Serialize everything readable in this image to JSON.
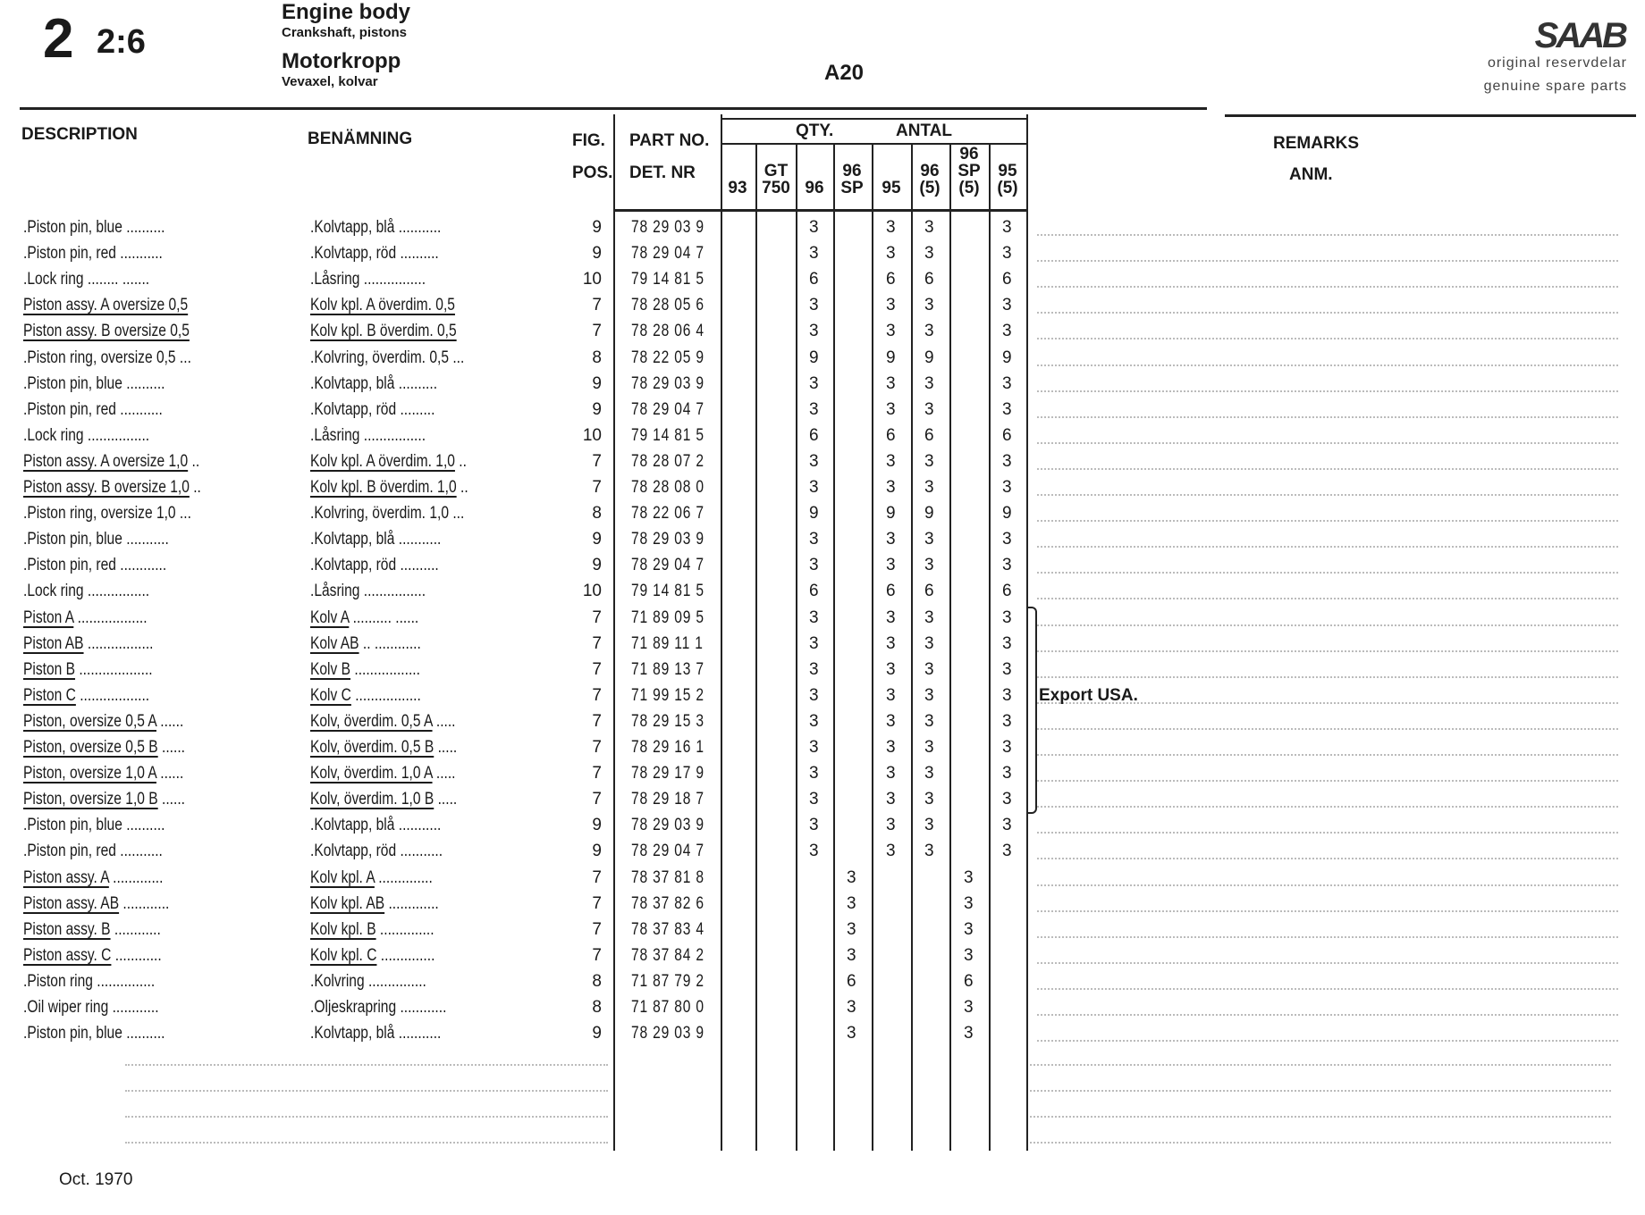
{
  "header": {
    "section_number": "2",
    "section_sub": "2:6",
    "title_en": "Engine body",
    "subtitle_en": "Crankshaft, pistons",
    "title_sv": "Motorkropp",
    "subtitle_sv": "Vevaxel, kolvar",
    "model": "A20",
    "logo": "SAAB",
    "tagline_sv": "original reservdelar",
    "tagline_en": "genuine spare parts"
  },
  "columns": {
    "description": "DESCRIPTION",
    "benamning": "BENÄMNING",
    "fig": "FIG.",
    "pos": "POS.",
    "part_no": "PART NO.",
    "det_nr": "DET. NR",
    "qty": "QTY.",
    "antal": "ANTAL",
    "remarks": "REMARKS",
    "anm": "ANM.",
    "qty_cols": [
      [
        "93"
      ],
      [
        "GT",
        "750"
      ],
      [
        "96"
      ],
      [
        "96",
        "SP"
      ],
      [
        "95"
      ],
      [
        "96",
        "(5)"
      ],
      [
        "96",
        "SP",
        "(5)"
      ],
      [
        "95",
        "(5)"
      ]
    ]
  },
  "rows": [
    {
      "desc": ".Piston pin, blue",
      "dl": " ..........",
      "ben": ".Kolvtapp, blå",
      "bl": " ...........",
      "fig": "9",
      "part": "78 29 03 9",
      "qty": [
        "",
        "",
        "3",
        "",
        "3",
        "3",
        "",
        "3"
      ],
      "u": false
    },
    {
      "desc": ".Piston pin, red",
      "dl": " ...........",
      "ben": ".Kolvtapp, röd",
      "bl": " ..........",
      "fig": "9",
      "part": "78 29 04 7",
      "qty": [
        "",
        "",
        "3",
        "",
        "3",
        "3",
        "",
        "3"
      ],
      "u": false
    },
    {
      "desc": ".Lock ring",
      "dl": " ........ .......",
      "ben": ".Låsring",
      "bl": " ................",
      "fig": "10",
      "part": "79 14 81 5",
      "qty": [
        "",
        "",
        "6",
        "",
        "6",
        "6",
        "",
        "6"
      ],
      "u": false
    },
    {
      "desc": "Piston assy. A oversize 0,5",
      "dl": "",
      "ben": "Kolv kpl. A överdim. 0,5",
      "bl": "",
      "fig": "7",
      "part": "78 28 05 6",
      "qty": [
        "",
        "",
        "3",
        "",
        "3",
        "3",
        "",
        "3"
      ],
      "u": true
    },
    {
      "desc": "Piston assy. B oversize 0,5",
      "dl": "",
      "ben": "Kolv kpl. B överdim. 0,5",
      "bl": "",
      "fig": "7",
      "part": "78 28 06 4",
      "qty": [
        "",
        "",
        "3",
        "",
        "3",
        "3",
        "",
        "3"
      ],
      "u": true
    },
    {
      "desc": ".Piston ring, oversize 0,5",
      "dl": " ...",
      "ben": ".Kolvring, överdim. 0,5",
      "bl": " ...",
      "fig": "8",
      "part": "78 22 05 9",
      "qty": [
        "",
        "",
        "9",
        "",
        "9",
        "9",
        "",
        "9"
      ],
      "u": false
    },
    {
      "desc": ".Piston pin, blue",
      "dl": " ..........",
      "ben": ".Kolvtapp, blå",
      "bl": " ..........",
      "fig": "9",
      "part": "78 29 03 9",
      "qty": [
        "",
        "",
        "3",
        "",
        "3",
        "3",
        "",
        "3"
      ],
      "u": false
    },
    {
      "desc": ".Piston pin, red",
      "dl": " ...........",
      "ben": ".Kolvtapp, röd",
      "bl": " .........",
      "fig": "9",
      "part": "78 29 04 7",
      "qty": [
        "",
        "",
        "3",
        "",
        "3",
        "3",
        "",
        "3"
      ],
      "u": false
    },
    {
      "desc": ".Lock ring",
      "dl": " ................",
      "ben": ".Låsring",
      "bl": " ................",
      "fig": "10",
      "part": "79 14 81 5",
      "qty": [
        "",
        "",
        "6",
        "",
        "6",
        "6",
        "",
        "6"
      ],
      "u": false
    },
    {
      "desc": "Piston assy. A oversize 1,0",
      "dl": " ..",
      "ben": "Kolv kpl. A överdim. 1,0",
      "bl": " ..",
      "fig": "7",
      "part": "78 28 07 2",
      "qty": [
        "",
        "",
        "3",
        "",
        "3",
        "3",
        "",
        "3"
      ],
      "u": true
    },
    {
      "desc": "Piston assy. B oversize 1,0",
      "dl": " ..",
      "ben": "Kolv kpl. B överdim. 1,0",
      "bl": " ..",
      "fig": "7",
      "part": "78 28 08 0",
      "qty": [
        "",
        "",
        "3",
        "",
        "3",
        "3",
        "",
        "3"
      ],
      "u": true
    },
    {
      "desc": ".Piston ring, oversize 1,0",
      "dl": " ...",
      "ben": ".Kolvring, överdim. 1,0",
      "bl": " ...",
      "fig": "8",
      "part": "78 22 06 7",
      "qty": [
        "",
        "",
        "9",
        "",
        "9",
        "9",
        "",
        "9"
      ],
      "u": false
    },
    {
      "desc": ".Piston pin, blue",
      "dl": " ...........",
      "ben": ".Kolvtapp, blå",
      "bl": " ...........",
      "fig": "9",
      "part": "78 29 03 9",
      "qty": [
        "",
        "",
        "3",
        "",
        "3",
        "3",
        "",
        "3"
      ],
      "u": false
    },
    {
      "desc": ".Piston pin, red",
      "dl": " ............",
      "ben": ".Kolvtapp, röd",
      "bl": " ..........",
      "fig": "9",
      "part": "78 29 04 7",
      "qty": [
        "",
        "",
        "3",
        "",
        "3",
        "3",
        "",
        "3"
      ],
      "u": false
    },
    {
      "desc": ".Lock ring",
      "dl": " ................",
      "ben": ".Låsring",
      "bl": " ................",
      "fig": "10",
      "part": "79 14 81 5",
      "qty": [
        "",
        "",
        "6",
        "",
        "6",
        "6",
        "",
        "6"
      ],
      "u": false
    },
    {
      "desc": "Piston A",
      "dl": " ..................",
      "ben": "Kolv A",
      "bl": " .......... ......",
      "fig": "7",
      "part": "71 89 09 5",
      "qty": [
        "",
        "",
        "3",
        "",
        "3",
        "3",
        "",
        "3"
      ],
      "u": true
    },
    {
      "desc": "Piston AB",
      "dl": " .................",
      "ben": "Kolv AB",
      "bl": " .. ............",
      "fig": "7",
      "part": "71 89 11 1",
      "qty": [
        "",
        "",
        "3",
        "",
        "3",
        "3",
        "",
        "3"
      ],
      "u": true
    },
    {
      "desc": "Piston B",
      "dl": " ...................",
      "ben": "Kolv B",
      "bl": " .................",
      "fig": "7",
      "part": "71 89 13 7",
      "qty": [
        "",
        "",
        "3",
        "",
        "3",
        "3",
        "",
        "3"
      ],
      "u": true
    },
    {
      "desc": "Piston C",
      "dl": " ..................",
      "ben": "Kolv C",
      "bl": " .................",
      "fig": "7",
      "part": "71 99 15 2",
      "qty": [
        "",
        "",
        "3",
        "",
        "3",
        "3",
        "",
        "3"
      ],
      "u": true
    },
    {
      "desc": "Piston, oversize 0,5 A",
      "dl": " ......",
      "ben": "Kolv, överdim. 0,5 A",
      "bl": " .....",
      "fig": "7",
      "part": "78 29 15 3",
      "qty": [
        "",
        "",
        "3",
        "",
        "3",
        "3",
        "",
        "3"
      ],
      "u": true
    },
    {
      "desc": "Piston, oversize 0,5 B",
      "dl": " ......",
      "ben": "Kolv, överdim. 0,5 B",
      "bl": " .....",
      "fig": "7",
      "part": "78 29 16 1",
      "qty": [
        "",
        "",
        "3",
        "",
        "3",
        "3",
        "",
        "3"
      ],
      "u": true
    },
    {
      "desc": "Piston, oversize 1,0 A",
      "dl": " ......",
      "ben": "Kolv, överdim. 1,0 A",
      "bl": " .....",
      "fig": "7",
      "part": "78 29 17 9",
      "qty": [
        "",
        "",
        "3",
        "",
        "3",
        "3",
        "",
        "3"
      ],
      "u": true
    },
    {
      "desc": "Piston, oversize 1,0 B",
      "dl": " ......",
      "ben": "Kolv, överdim. 1,0 B",
      "bl": " .....",
      "fig": "7",
      "part": "78 29 18 7",
      "qty": [
        "",
        "",
        "3",
        "",
        "3",
        "3",
        "",
        "3"
      ],
      "u": true
    },
    {
      "desc": ".Piston pin, blue",
      "dl": " ..........",
      "ben": ".Kolvtapp, blå",
      "bl": " ...........",
      "fig": "9",
      "part": "78 29 03 9",
      "qty": [
        "",
        "",
        "3",
        "",
        "3",
        "3",
        "",
        "3"
      ],
      "u": false
    },
    {
      "desc": ".Piston pin, red",
      "dl": " ...........",
      "ben": ".Kolvtapp, röd",
      "bl": " ...........",
      "fig": "9",
      "part": "78 29 04 7",
      "qty": [
        "",
        "",
        "3",
        "",
        "3",
        "3",
        "",
        "3"
      ],
      "u": false
    },
    {
      "desc": "Piston assy. A",
      "dl": " .............",
      "ben": "Kolv kpl. A",
      "bl": " ..............",
      "fig": "7",
      "part": "78 37 81 8",
      "qty": [
        "",
        "",
        "",
        "3",
        "",
        "",
        "3",
        ""
      ],
      "u": true
    },
    {
      "desc": "Piston assy. AB",
      "dl": " ............",
      "ben": "Kolv kpl. AB",
      "bl": " .............",
      "fig": "7",
      "part": "78 37 82 6",
      "qty": [
        "",
        "",
        "",
        "3",
        "",
        "",
        "3",
        ""
      ],
      "u": true
    },
    {
      "desc": "Piston assy. B",
      "dl": " ............",
      "ben": "Kolv kpl. B",
      "bl": " ..............",
      "fig": "7",
      "part": "78 37 83 4",
      "qty": [
        "",
        "",
        "",
        "3",
        "",
        "",
        "3",
        ""
      ],
      "u": true
    },
    {
      "desc": "Piston assy. C",
      "dl": " ............",
      "ben": "Kolv kpl. C",
      "bl": " ..............",
      "fig": "7",
      "part": "78 37 84 2",
      "qty": [
        "",
        "",
        "",
        "3",
        "",
        "",
        "3",
        ""
      ],
      "u": true
    },
    {
      "desc": ".Piston ring",
      "dl": " ...............",
      "ben": ".Kolvring",
      "bl": " ...............",
      "fig": "8",
      "part": "71 87 79 2",
      "qty": [
        "",
        "",
        "",
        "6",
        "",
        "",
        "6",
        ""
      ],
      "u": false
    },
    {
      "desc": ".Oil wiper ring",
      "dl": " ............",
      "ben": ".Oljeskrapring",
      "bl": " ............",
      "fig": "8",
      "part": "71 87 80 0",
      "qty": [
        "",
        "",
        "",
        "3",
        "",
        "",
        "3",
        ""
      ],
      "u": false
    },
    {
      "desc": ".Piston pin, blue",
      "dl": " ..........",
      "ben": ".Kolvtapp, blå",
      "bl": " ...........",
      "fig": "9",
      "part": "78 29 03 9",
      "qty": [
        "",
        "",
        "",
        "3",
        "",
        "",
        "3",
        ""
      ],
      "u": false
    }
  ],
  "remarks": {
    "export_usa": "Export USA."
  },
  "footer": {
    "date": "Oct. 1970"
  }
}
